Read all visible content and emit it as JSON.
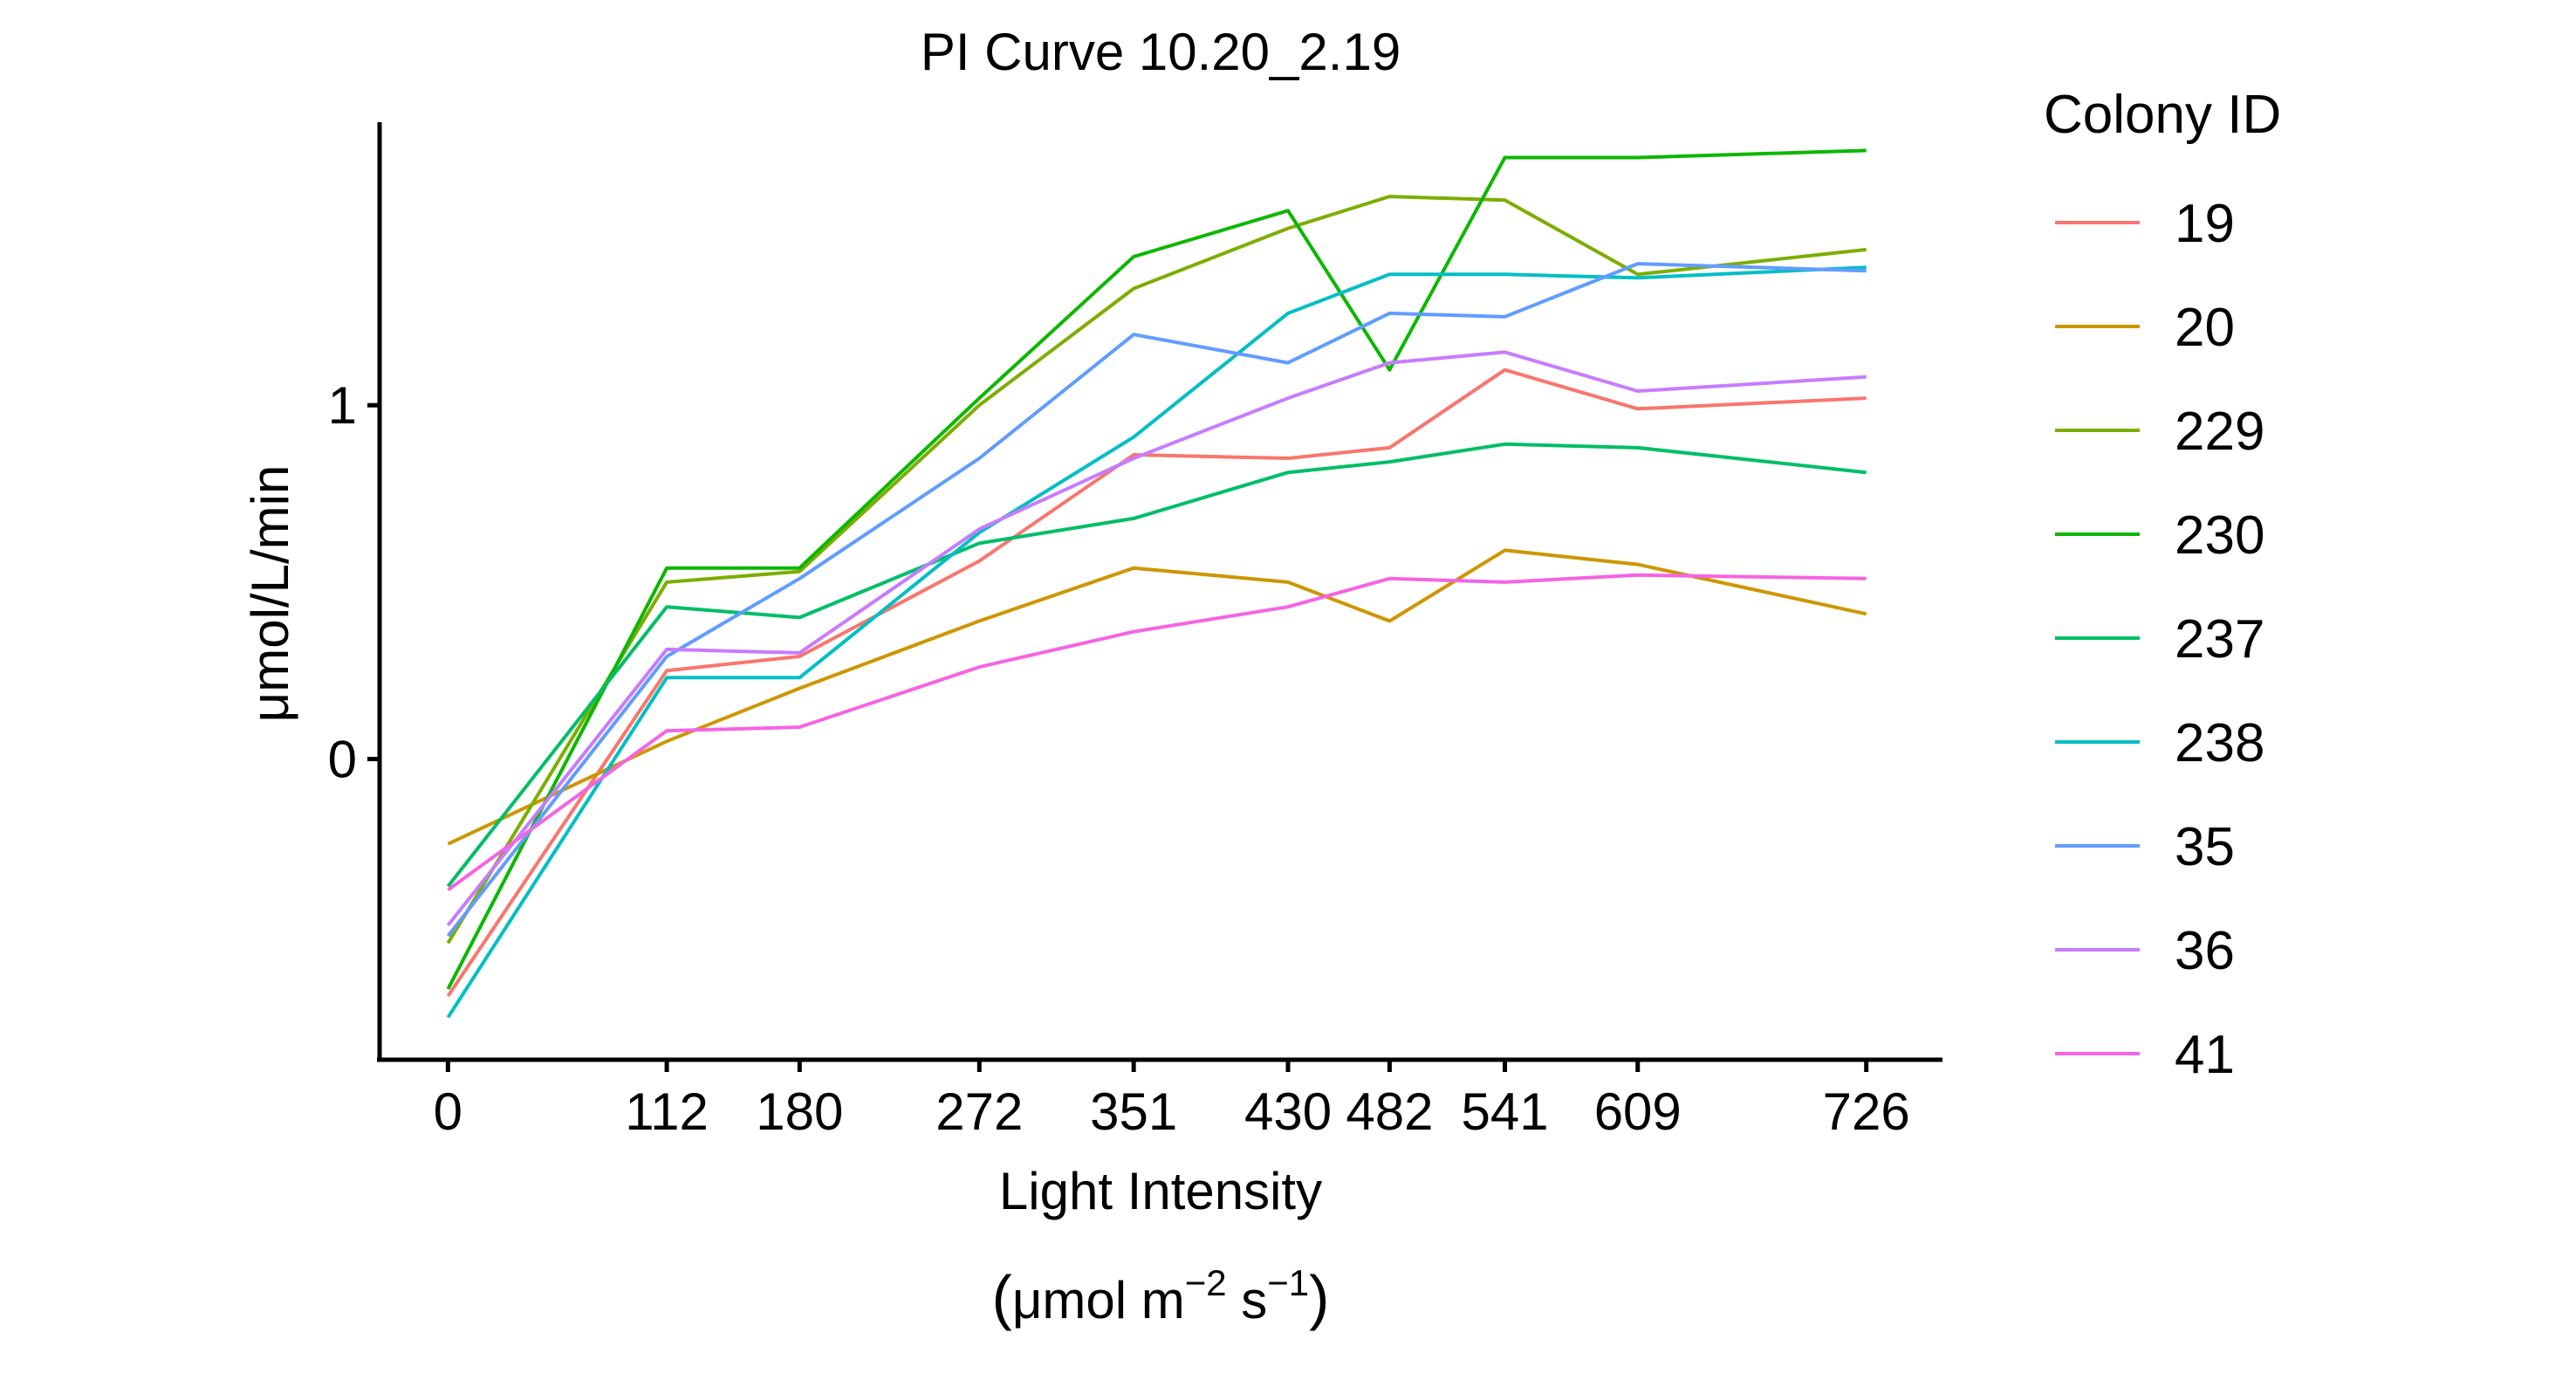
{
  "chart_data": {
    "type": "line",
    "title": "PI Curve 10.20_2.19",
    "xlabel": "Light Intensity",
    "xlabel_units": {
      "open": "(",
      "base1": "μmol m",
      "sup1": "−2",
      "base2": " s",
      "sup2": "−1",
      "close": ")"
    },
    "ylabel": "μmol/L/min",
    "x": [
      0,
      112,
      180,
      272,
      351,
      430,
      482,
      541,
      609,
      726
    ],
    "x_tick_labels": [
      "0",
      "112",
      "180",
      "272",
      "351",
      "430",
      "482",
      "541",
      "609",
      "726"
    ],
    "y_ticks": [
      0,
      1
    ],
    "y_tick_labels": [
      "0",
      "1"
    ],
    "xlim": [
      -35,
      765
    ],
    "ylim": [
      -0.85,
      1.8
    ],
    "legend_title": "Colony ID",
    "legend_position": "right",
    "series": [
      {
        "name": "19",
        "color": "#F8766D",
        "values": [
          -0.67,
          0.25,
          0.29,
          0.56,
          0.86,
          0.85,
          0.88,
          1.1,
          0.99,
          1.02
        ]
      },
      {
        "name": "20",
        "color": "#CD9600",
        "values": [
          -0.24,
          0.05,
          0.2,
          0.39,
          0.54,
          0.5,
          0.39,
          0.59,
          0.55,
          0.41
        ]
      },
      {
        "name": "229",
        "color": "#7CAE00",
        "values": [
          -0.52,
          0.5,
          0.53,
          1.0,
          1.33,
          1.5,
          1.59,
          1.58,
          1.37,
          1.44
        ]
      },
      {
        "name": "230",
        "color": "#0CB702",
        "values": [
          -0.65,
          0.54,
          0.54,
          1.02,
          1.42,
          1.55,
          1.1,
          1.7,
          1.7,
          1.72
        ]
      },
      {
        "name": "237",
        "color": "#00BE67",
        "values": [
          -0.36,
          0.43,
          0.4,
          0.61,
          0.68,
          0.81,
          0.84,
          0.89,
          0.88,
          0.81
        ]
      },
      {
        "name": "238",
        "color": "#00BFC4",
        "values": [
          -0.73,
          0.23,
          0.23,
          0.64,
          0.91,
          1.26,
          1.37,
          1.37,
          1.36,
          1.39
        ]
      },
      {
        "name": "35",
        "color": "#619CFF",
        "values": [
          -0.5,
          0.29,
          0.51,
          0.85,
          1.2,
          1.12,
          1.26,
          1.25,
          1.4,
          1.38
        ]
      },
      {
        "name": "36",
        "color": "#C77CFF",
        "values": [
          -0.47,
          0.31,
          0.3,
          0.65,
          0.85,
          1.02,
          1.12,
          1.15,
          1.04,
          1.08
        ]
      },
      {
        "name": "41",
        "color": "#F564E3",
        "values": [
          -0.37,
          0.08,
          0.09,
          0.26,
          0.36,
          0.43,
          0.51,
          0.5,
          0.52,
          0.51
        ]
      }
    ]
  }
}
